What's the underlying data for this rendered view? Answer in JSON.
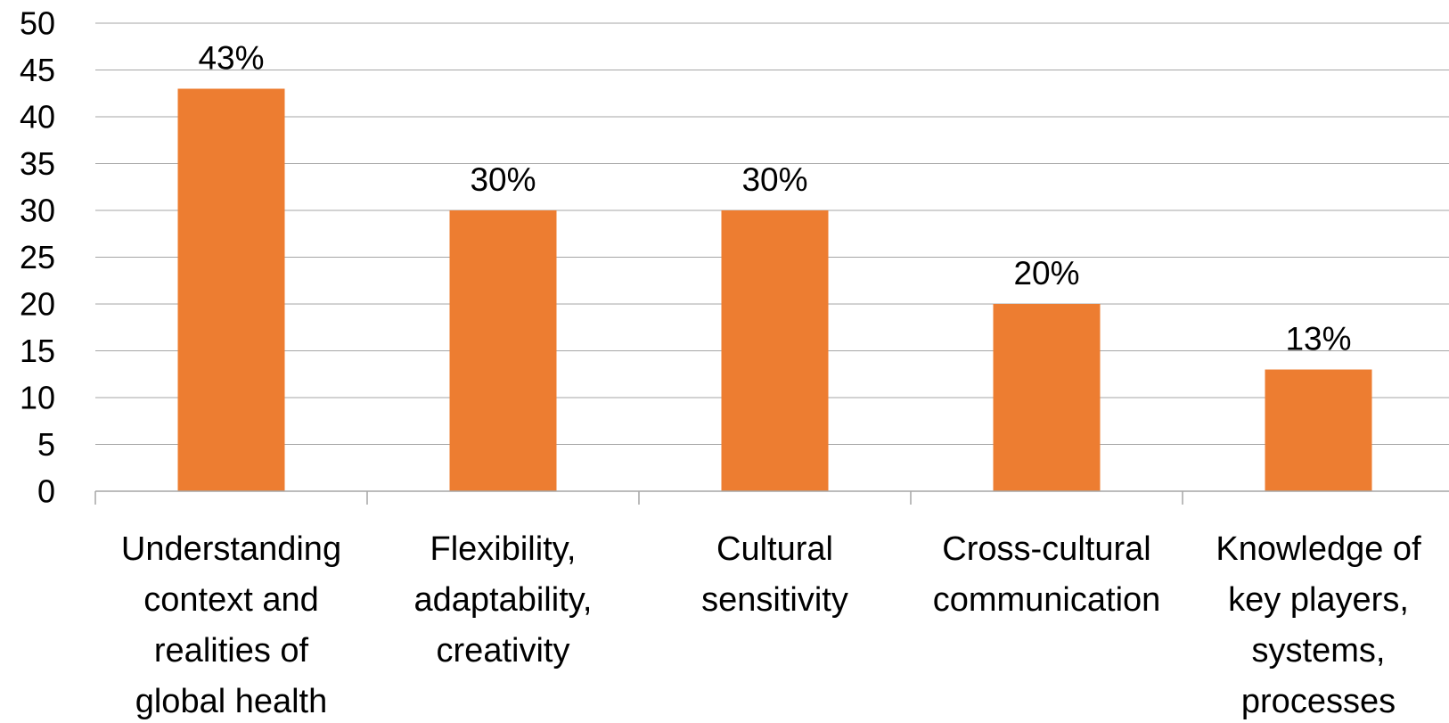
{
  "chart_data": {
    "type": "bar",
    "categories": [
      [
        "Understanding",
        "context and",
        "realities of",
        "global health"
      ],
      [
        "Flexibility,",
        "adaptability,",
        "creativity"
      ],
      [
        "Cultural",
        "sensitivity"
      ],
      [
        "Cross-cultural",
        "communication"
      ],
      [
        "Knowledge of",
        "key players,",
        "systems,",
        "processes"
      ]
    ],
    "values": [
      43,
      30,
      30,
      20,
      13
    ],
    "data_labels": [
      "43%",
      "30%",
      "30%",
      "20%",
      "13%"
    ],
    "ylim": [
      0,
      50
    ],
    "yticks": [
      "0",
      "5",
      "10",
      "15",
      "20",
      "25",
      "30",
      "35",
      "40",
      "45",
      "50"
    ],
    "title": "",
    "xlabel": "",
    "ylabel": "",
    "grid": true,
    "legend": "none",
    "colors": {
      "bar": "#ED7D31",
      "grid": "#A6A6A6",
      "axis": "#A6A6A6",
      "text": "#000000"
    }
  }
}
